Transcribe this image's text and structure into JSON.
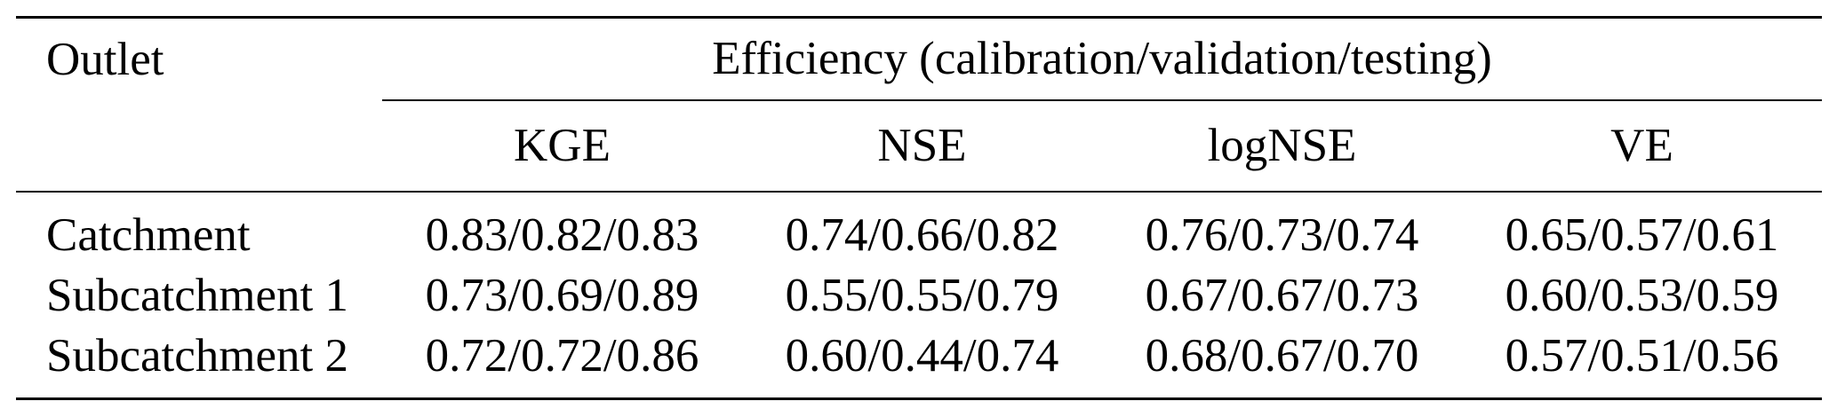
{
  "page": {
    "background_color": "#ffffff",
    "text_color": "#000000",
    "rule_color": "#000000"
  },
  "table": {
    "outlet_header": "Outlet",
    "group_header": "Efficiency (calibration/validation/testing)",
    "metric_headers": [
      "KGE",
      "NSE",
      "logNSE",
      "VE"
    ],
    "rows": [
      {
        "label": "Catchment",
        "values": [
          "0.83/0.82/0.83",
          "0.74/0.66/0.82",
          "0.76/0.73/0.74",
          "0.65/0.57/0.61"
        ]
      },
      {
        "label": "Subcatchment 1",
        "values": [
          "0.73/0.69/0.89",
          "0.55/0.55/0.79",
          "0.67/0.67/0.73",
          "0.60/0.53/0.59"
        ]
      },
      {
        "label": "Subcatchment 2",
        "values": [
          "0.72/0.72/0.86",
          "0.60/0.44/0.74",
          "0.68/0.67/0.70",
          "0.57/0.51/0.56"
        ]
      }
    ]
  },
  "chart_data": {
    "type": "table",
    "title": "Efficiency (calibration/validation/testing)",
    "columns": [
      "Outlet",
      "KGE",
      "NSE",
      "logNSE",
      "VE"
    ],
    "value_format": "calibration/validation/testing",
    "rows": [
      [
        "Catchment",
        "0.83/0.82/0.83",
        "0.74/0.66/0.82",
        "0.76/0.73/0.74",
        "0.65/0.57/0.61"
      ],
      [
        "Subcatchment 1",
        "0.73/0.69/0.89",
        "0.55/0.55/0.79",
        "0.67/0.67/0.73",
        "0.60/0.53/0.59"
      ],
      [
        "Subcatchment 2",
        "0.72/0.72/0.86",
        "0.60/0.44/0.74",
        "0.68/0.67/0.70",
        "0.57/0.51/0.56"
      ]
    ]
  }
}
